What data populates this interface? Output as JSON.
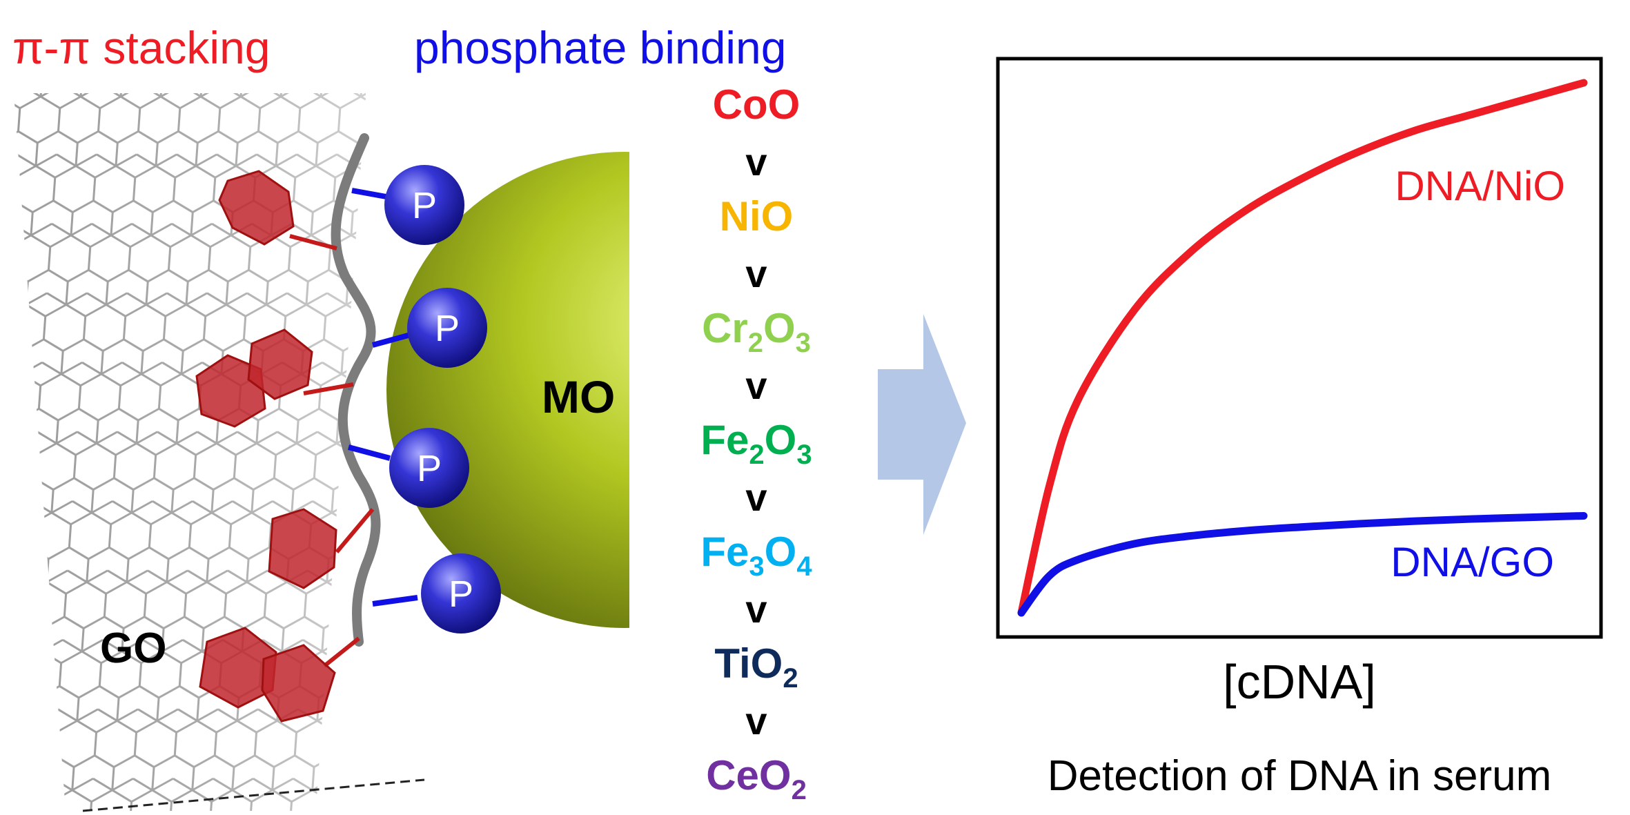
{
  "labels": {
    "pi_stacking": "π-π stacking",
    "phosphate_binding": "phosphate binding",
    "go": "GO",
    "mo": "MO",
    "phosphate_symbol": "P"
  },
  "ranking": {
    "separator": "v",
    "items": [
      {
        "base": "CoO",
        "parts": [
          {
            "t": "CoO"
          }
        ],
        "color": "#ee1c24"
      },
      {
        "base": "NiO",
        "parts": [
          {
            "t": "NiO"
          }
        ],
        "color": "#f7b500"
      },
      {
        "base": "Cr2O3",
        "parts": [
          {
            "t": "Cr"
          },
          {
            "t": "2",
            "sub": true
          },
          {
            "t": "O"
          },
          {
            "t": "3",
            "sub": true
          }
        ],
        "color": "#8fd14f"
      },
      {
        "base": "Fe2O3",
        "parts": [
          {
            "t": "Fe"
          },
          {
            "t": "2",
            "sub": true
          },
          {
            "t": "O"
          },
          {
            "t": "3",
            "sub": true
          }
        ],
        "color": "#00b050"
      },
      {
        "base": "Fe3O4",
        "parts": [
          {
            "t": "Fe"
          },
          {
            "t": "3",
            "sub": true
          },
          {
            "t": "O"
          },
          {
            "t": "4",
            "sub": true
          }
        ],
        "color": "#00b0f0"
      },
      {
        "base": "TiO2",
        "parts": [
          {
            "t": "TiO"
          },
          {
            "t": "2",
            "sub": true
          }
        ],
        "color": "#0f2b5b"
      },
      {
        "base": "CeO2",
        "parts": [
          {
            "t": "CeO"
          },
          {
            "t": "2",
            "sub": true
          }
        ],
        "color": "#7030a0"
      }
    ]
  },
  "colors": {
    "red": "#ee1c24",
    "blue": "#1010e6",
    "sphere": "#a8bd1c",
    "arrow": "#b4c7e7"
  },
  "chart_data": {
    "type": "line",
    "title": "",
    "xlabel": "[cDNA]",
    "ylabel": "",
    "caption": "Detection of DNA in serum",
    "xlim": [
      0,
      1
    ],
    "ylim": [
      0,
      1
    ],
    "grid": false,
    "series": [
      {
        "name": "DNA/NiO",
        "color": "#ee1c24",
        "x": [
          0,
          0.05,
          0.1,
          0.2,
          0.3,
          0.4,
          0.5,
          0.6,
          0.7,
          0.8,
          0.9,
          1.0
        ],
        "y": [
          0,
          0.24,
          0.4,
          0.57,
          0.68,
          0.76,
          0.82,
          0.87,
          0.91,
          0.94,
          0.97,
          1.0
        ]
      },
      {
        "name": "DNA/GO",
        "color": "#1010e6",
        "x": [
          0,
          0.05,
          0.1,
          0.2,
          0.3,
          0.4,
          0.5,
          0.6,
          0.7,
          0.8,
          0.9,
          1.0
        ],
        "y": [
          0,
          0.07,
          0.1,
          0.13,
          0.145,
          0.155,
          0.162,
          0.168,
          0.173,
          0.177,
          0.18,
          0.183
        ]
      }
    ]
  }
}
